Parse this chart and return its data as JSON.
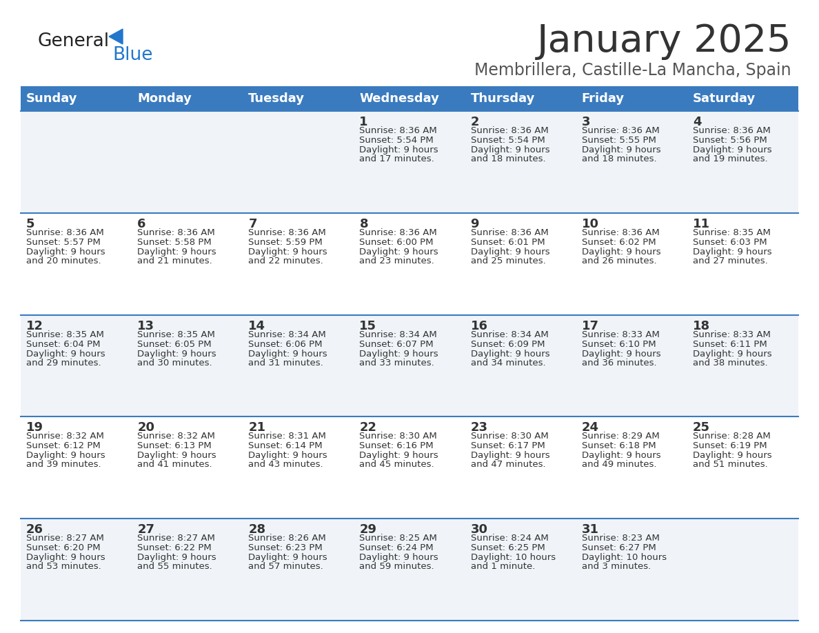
{
  "title": "January 2025",
  "subtitle": "Membrillera, Castille-La Mancha, Spain",
  "days_of_week": [
    "Sunday",
    "Monday",
    "Tuesday",
    "Wednesday",
    "Thursday",
    "Friday",
    "Saturday"
  ],
  "header_bg": "#3a7bbf",
  "header_text": "#ffffff",
  "row_bg_odd": "#f0f4f8",
  "row_bg_even": "#ffffff",
  "divider_color": "#3a7bbf",
  "day_number_color": "#333333",
  "text_color": "#333333",
  "title_color": "#333333",
  "subtitle_color": "#555555",
  "calendar_data": [
    [
      {
        "day": null,
        "sunrise": null,
        "sunset": null,
        "daylight": null
      },
      {
        "day": null,
        "sunrise": null,
        "sunset": null,
        "daylight": null
      },
      {
        "day": null,
        "sunrise": null,
        "sunset": null,
        "daylight": null
      },
      {
        "day": 1,
        "sunrise": "8:36 AM",
        "sunset": "5:54 PM",
        "daylight": "9 hours and 17 minutes."
      },
      {
        "day": 2,
        "sunrise": "8:36 AM",
        "sunset": "5:54 PM",
        "daylight": "9 hours and 18 minutes."
      },
      {
        "day": 3,
        "sunrise": "8:36 AM",
        "sunset": "5:55 PM",
        "daylight": "9 hours and 18 minutes."
      },
      {
        "day": 4,
        "sunrise": "8:36 AM",
        "sunset": "5:56 PM",
        "daylight": "9 hours and 19 minutes."
      }
    ],
    [
      {
        "day": 5,
        "sunrise": "8:36 AM",
        "sunset": "5:57 PM",
        "daylight": "9 hours and 20 minutes."
      },
      {
        "day": 6,
        "sunrise": "8:36 AM",
        "sunset": "5:58 PM",
        "daylight": "9 hours and 21 minutes."
      },
      {
        "day": 7,
        "sunrise": "8:36 AM",
        "sunset": "5:59 PM",
        "daylight": "9 hours and 22 minutes."
      },
      {
        "day": 8,
        "sunrise": "8:36 AM",
        "sunset": "6:00 PM",
        "daylight": "9 hours and 23 minutes."
      },
      {
        "day": 9,
        "sunrise": "8:36 AM",
        "sunset": "6:01 PM",
        "daylight": "9 hours and 25 minutes."
      },
      {
        "day": 10,
        "sunrise": "8:36 AM",
        "sunset": "6:02 PM",
        "daylight": "9 hours and 26 minutes."
      },
      {
        "day": 11,
        "sunrise": "8:35 AM",
        "sunset": "6:03 PM",
        "daylight": "9 hours and 27 minutes."
      }
    ],
    [
      {
        "day": 12,
        "sunrise": "8:35 AM",
        "sunset": "6:04 PM",
        "daylight": "9 hours and 29 minutes."
      },
      {
        "day": 13,
        "sunrise": "8:35 AM",
        "sunset": "6:05 PM",
        "daylight": "9 hours and 30 minutes."
      },
      {
        "day": 14,
        "sunrise": "8:34 AM",
        "sunset": "6:06 PM",
        "daylight": "9 hours and 31 minutes."
      },
      {
        "day": 15,
        "sunrise": "8:34 AM",
        "sunset": "6:07 PM",
        "daylight": "9 hours and 33 minutes."
      },
      {
        "day": 16,
        "sunrise": "8:34 AM",
        "sunset": "6:09 PM",
        "daylight": "9 hours and 34 minutes."
      },
      {
        "day": 17,
        "sunrise": "8:33 AM",
        "sunset": "6:10 PM",
        "daylight": "9 hours and 36 minutes."
      },
      {
        "day": 18,
        "sunrise": "8:33 AM",
        "sunset": "6:11 PM",
        "daylight": "9 hours and 38 minutes."
      }
    ],
    [
      {
        "day": 19,
        "sunrise": "8:32 AM",
        "sunset": "6:12 PM",
        "daylight": "9 hours and 39 minutes."
      },
      {
        "day": 20,
        "sunrise": "8:32 AM",
        "sunset": "6:13 PM",
        "daylight": "9 hours and 41 minutes."
      },
      {
        "day": 21,
        "sunrise": "8:31 AM",
        "sunset": "6:14 PM",
        "daylight": "9 hours and 43 minutes."
      },
      {
        "day": 22,
        "sunrise": "8:30 AM",
        "sunset": "6:16 PM",
        "daylight": "9 hours and 45 minutes."
      },
      {
        "day": 23,
        "sunrise": "8:30 AM",
        "sunset": "6:17 PM",
        "daylight": "9 hours and 47 minutes."
      },
      {
        "day": 24,
        "sunrise": "8:29 AM",
        "sunset": "6:18 PM",
        "daylight": "9 hours and 49 minutes."
      },
      {
        "day": 25,
        "sunrise": "8:28 AM",
        "sunset": "6:19 PM",
        "daylight": "9 hours and 51 minutes."
      }
    ],
    [
      {
        "day": 26,
        "sunrise": "8:27 AM",
        "sunset": "6:20 PM",
        "daylight": "9 hours and 53 minutes."
      },
      {
        "day": 27,
        "sunrise": "8:27 AM",
        "sunset": "6:22 PM",
        "daylight": "9 hours and 55 minutes."
      },
      {
        "day": 28,
        "sunrise": "8:26 AM",
        "sunset": "6:23 PM",
        "daylight": "9 hours and 57 minutes."
      },
      {
        "day": 29,
        "sunrise": "8:25 AM",
        "sunset": "6:24 PM",
        "daylight": "9 hours and 59 minutes."
      },
      {
        "day": 30,
        "sunrise": "8:24 AM",
        "sunset": "6:25 PM",
        "daylight": "10 hours and 1 minute."
      },
      {
        "day": 31,
        "sunrise": "8:23 AM",
        "sunset": "6:27 PM",
        "daylight": "10 hours and 3 minutes."
      },
      {
        "day": null,
        "sunrise": null,
        "sunset": null,
        "daylight": null
      }
    ]
  ],
  "logo_text_general": "General",
  "logo_text_blue": "Blue",
  "logo_color_general": "#222222",
  "logo_color_blue": "#2277cc",
  "triangle_color": "#2277cc"
}
